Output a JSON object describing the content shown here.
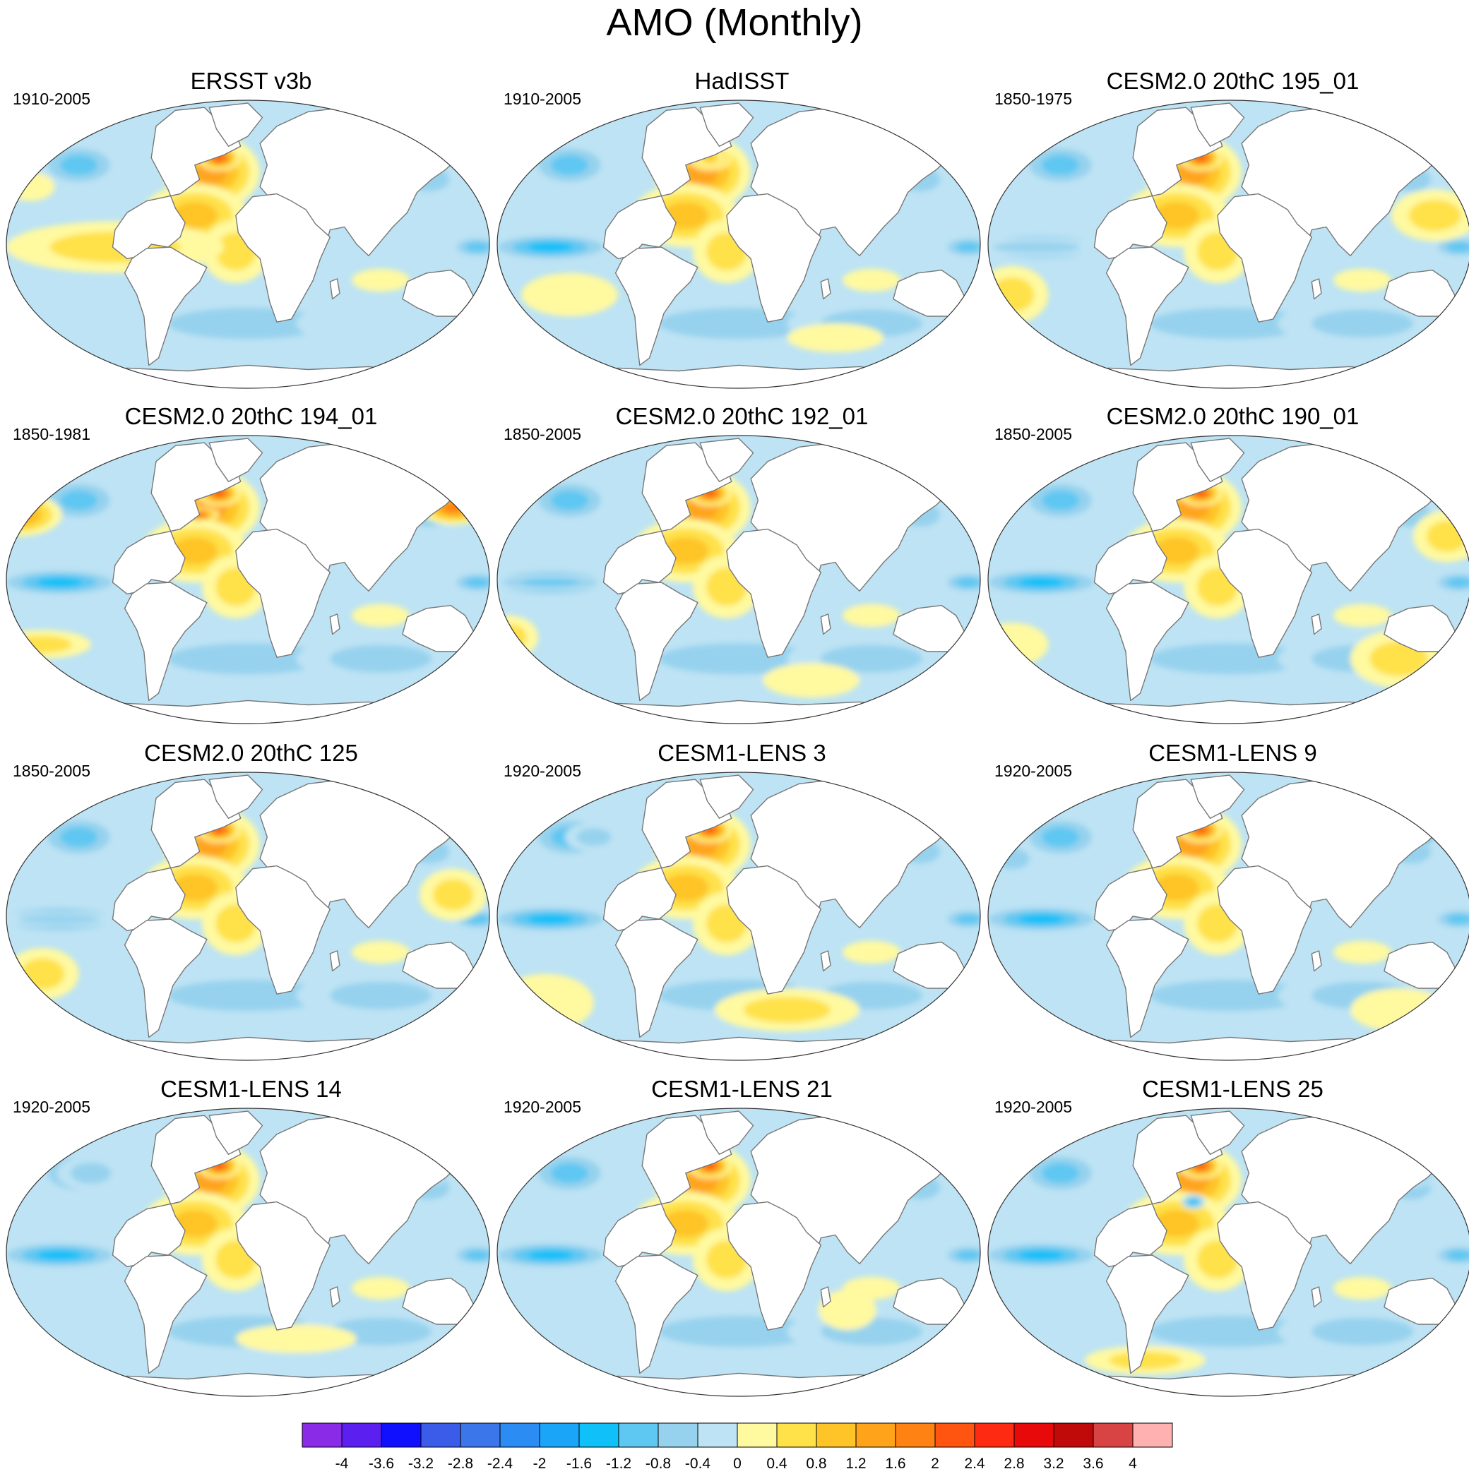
{
  "figure": {
    "title": "AMO (Monthly)",
    "variable": "SST regression onto AMO index"
  },
  "colors": {
    "background": "#ffffff",
    "land": "#ffffff",
    "coast": "#777777",
    "map_border": "#333333"
  },
  "panels": [
    {
      "title": "ERSST v3b",
      "period": "1910-2005"
    },
    {
      "title": "HadISST",
      "period": "1910-2005"
    },
    {
      "title": "CESM2.0 20thC 195_01",
      "period": "1850-1975"
    },
    {
      "title": "CESM2.0 20thC 194_01",
      "period": "1850-1981"
    },
    {
      "title": "CESM2.0 20thC 192_01",
      "period": "1850-2005"
    },
    {
      "title": "CESM2.0 20thC 190_01",
      "period": "1850-2005"
    },
    {
      "title": "CESM2.0 20thC 125",
      "period": "1850-2005"
    },
    {
      "title": "CESM1-LENS 3",
      "period": "1920-2005"
    },
    {
      "title": "CESM1-LENS 9",
      "period": "1920-2005"
    },
    {
      "title": "CESM1-LENS 14",
      "period": "1920-2005"
    },
    {
      "title": "CESM1-LENS 21",
      "period": "1920-2005"
    },
    {
      "title": "CESM1-LENS 25",
      "period": "1920-2005"
    }
  ],
  "colorbar": {
    "labels": [
      "-4",
      "-3.6",
      "-3.2",
      "-2.8",
      "-2.4",
      "-2",
      "-1.6",
      "-1.2",
      "-0.8",
      "-0.4",
      "0",
      "0.4",
      "0.8",
      "1.2",
      "1.6",
      "2",
      "2.4",
      "2.8",
      "3.2",
      "3.6",
      "4"
    ],
    "colors": [
      "#8a2be8",
      "#5b20f0",
      "#1010ff",
      "#3a5ce8",
      "#3b76ea",
      "#2b8cf4",
      "#1aa5f8",
      "#10c0f8",
      "#5ec7f2",
      "#96d2ee",
      "#bde3f4",
      "#fff9a0",
      "#ffe14a",
      "#ffc428",
      "#ffa41a",
      "#ff8212",
      "#ff5510",
      "#ff2a12",
      "#e80a0a",
      "#c00a0a",
      "#d84444",
      "#ffb0b0"
    ]
  }
}
